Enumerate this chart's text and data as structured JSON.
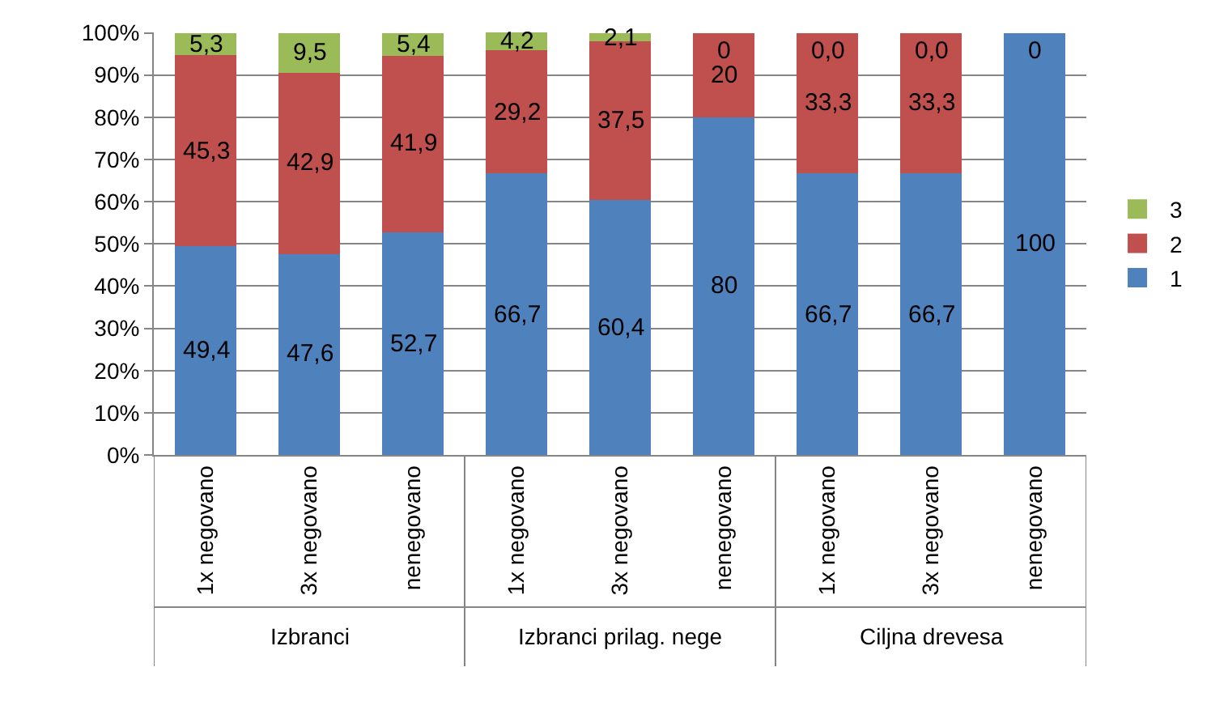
{
  "chart_data": {
    "type": "bar",
    "stacked": true,
    "categories": [
      "1x negovano",
      "3x negovano",
      "nenegovano",
      "1x negovano",
      "3x negovano",
      "nenegovano",
      "1x negovano",
      "3x negovano",
      "nenegovano"
    ],
    "series": [
      {
        "name": "1",
        "color": "#4f81bd",
        "values": [
          49.4,
          47.6,
          52.7,
          66.7,
          60.4,
          80,
          66.7,
          66.7,
          100
        ],
        "value_labels": [
          "49,4",
          "47,6",
          "52,7",
          "66,7",
          "60,4",
          "80",
          "66,7",
          "66,7",
          "100"
        ]
      },
      {
        "name": "2",
        "color": "#c0504d",
        "values": [
          45.3,
          42.9,
          41.9,
          29.2,
          37.5,
          20,
          33.3,
          33.3,
          0
        ],
        "value_labels": [
          "45,3",
          "42,9",
          "41,9",
          "29,2",
          "37,5",
          "20",
          "33,3",
          "33,3",
          null
        ]
      },
      {
        "name": "3",
        "color": "#9bbb59",
        "values": [
          5.3,
          9.5,
          5.4,
          4.2,
          2.1,
          0,
          0.0,
          0.0,
          0
        ],
        "value_labels": [
          "5,3",
          "9,5",
          "5,4",
          "4,2",
          "2,1",
          "0",
          "0,0",
          "0,0",
          "0"
        ]
      }
    ],
    "annotations": [
      "Izbranci",
      "Izbranci prilag. nege",
      "Ciljna drevesa"
    ],
    "ylim": [
      0,
      100.1
    ],
    "yticks": [
      {
        "value": 0,
        "label": "0%"
      },
      {
        "value": 10,
        "label": "10%"
      },
      {
        "value": 20,
        "label": "20%"
      },
      {
        "value": 30,
        "label": "30%"
      },
      {
        "value": 40,
        "label": "40%"
      },
      {
        "value": 50,
        "label": "50%"
      },
      {
        "value": 60,
        "label": "60%"
      },
      {
        "value": 70,
        "label": "70%"
      },
      {
        "value": 80,
        "label": "80%"
      },
      {
        "value": 90,
        "label": "90%"
      },
      {
        "value": 100,
        "label": "100%"
      }
    ],
    "grid": "y",
    "legend": "right"
  }
}
